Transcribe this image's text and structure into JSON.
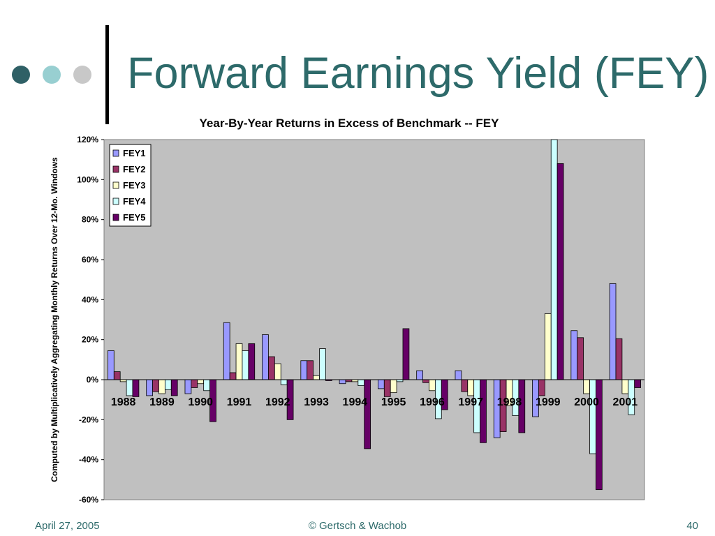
{
  "slide": {
    "title": "Forward Earnings Yield (FEY)",
    "footer_date": "April 27, 2005",
    "footer_copyright": "© Gertsch & Wachob",
    "page_number": "40",
    "accent_colors": [
      "#2f6066",
      "#98cfd1",
      "#c8c8c8"
    ]
  },
  "chart_data": {
    "type": "bar",
    "title": "Year-By-Year Returns in Excess of Benchmark -- FEY",
    "xlabel": "",
    "ylabel": "Computed by Multiplicatively Aggregating Monthly Returns Over 12-Mo. Windows",
    "ylim": [
      -60,
      120
    ],
    "yticks": [
      "-60%",
      "-40%",
      "-20%",
      "0%",
      "20%",
      "40%",
      "60%",
      "80%",
      "100%",
      "120%"
    ],
    "grid": false,
    "legend_position": "top-left",
    "plot_background": "#c0c0c0",
    "categories": [
      "1988",
      "1989",
      "1990",
      "1991",
      "1992",
      "1993",
      "1994",
      "1995",
      "1996",
      "1997",
      "1998",
      "1999",
      "2000",
      "2001"
    ],
    "series": [
      {
        "name": "FEY1",
        "color": "#9999ff",
        "values": [
          14.5,
          -8,
          -7,
          28.5,
          22.5,
          9.5,
          -2,
          -4.5,
          4.5,
          4.5,
          -29,
          -18.5,
          24.5,
          48
        ]
      },
      {
        "name": "FEY2",
        "color": "#993366",
        "values": [
          4,
          -6,
          -4,
          3.5,
          11.5,
          9.5,
          -1,
          -8.5,
          -1.5,
          -6,
          -26,
          -8,
          21,
          20.5
        ]
      },
      {
        "name": "FEY3",
        "color": "#ffffcc",
        "values": [
          -1,
          -7,
          -2,
          18,
          8,
          2,
          -1,
          -6.5,
          -5.5,
          -8,
          -13,
          33,
          -7,
          -7
        ]
      },
      {
        "name": "FEY4",
        "color": "#ccffff",
        "values": [
          -8,
          -5,
          -5.5,
          14.5,
          -2.5,
          15.5,
          -3,
          -1,
          -19.5,
          -26.5,
          -18,
          120,
          -37,
          -17.5
        ]
      },
      {
        "name": "FEY5",
        "color": "#660066",
        "values": [
          -8.5,
          -8,
          -21,
          18,
          -20,
          -0.5,
          -34.5,
          25.5,
          -15,
          -31.5,
          -26.5,
          108,
          -55,
          -4
        ]
      }
    ]
  }
}
